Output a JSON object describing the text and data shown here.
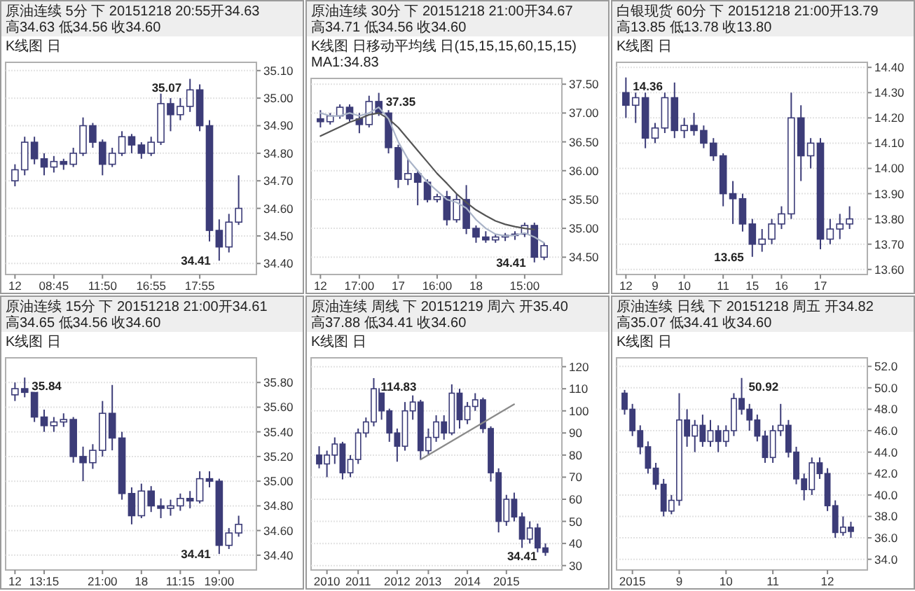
{
  "chart_data": [
    {
      "type": "candlestick",
      "title": "原油连续 5分 下 20151218 20:55开34.63 高34.63 低34.56 收34.60",
      "subtitle": "K线图 日",
      "categories": [
        "12",
        null,
        null,
        null,
        "08:45",
        null,
        null,
        null,
        null,
        "11:50",
        null,
        null,
        null,
        null,
        "16:55",
        null,
        null,
        null,
        null,
        "17:55",
        null,
        null,
        null,
        null
      ],
      "ylim": [
        34.36,
        35.13
      ],
      "yticks": [
        {
          "value": 34.4,
          "label": "34.40"
        },
        {
          "value": 34.5,
          "label": "34.50"
        },
        {
          "value": 34.6,
          "label": "34.60"
        },
        {
          "value": 34.7,
          "label": "34.70"
        },
        {
          "value": 34.8,
          "label": "34.80"
        },
        {
          "value": 34.9,
          "label": "34.90"
        },
        {
          "value": 35,
          "label": "35.00"
        },
        {
          "value": 35.1,
          "label": "35.10"
        }
      ],
      "grid": "y",
      "annotations": [
        "35.07",
        "34.41"
      ],
      "series": [
        {
          "type": "candlestick",
          "color": "#3c3c78",
          "ohlc": [
            [
              34.7,
              34.76,
              34.68,
              34.74
            ],
            [
              34.74,
              34.86,
              34.72,
              34.84
            ],
            [
              34.84,
              34.86,
              34.76,
              34.78
            ],
            [
              34.78,
              34.8,
              34.72,
              34.75
            ],
            [
              34.75,
              34.79,
              34.73,
              34.77
            ],
            [
              34.77,
              34.78,
              34.74,
              34.76
            ],
            [
              34.76,
              34.82,
              34.75,
              34.8
            ],
            [
              34.8,
              34.93,
              34.79,
              34.9
            ],
            [
              34.9,
              34.91,
              34.82,
              34.84
            ],
            [
              34.84,
              34.85,
              34.72,
              34.76
            ],
            [
              34.76,
              34.82,
              34.75,
              34.8
            ],
            [
              34.8,
              34.88,
              34.79,
              34.86
            ],
            [
              34.86,
              34.87,
              34.8,
              34.83
            ],
            [
              34.83,
              34.84,
              34.78,
              34.8
            ],
            [
              34.8,
              34.86,
              34.79,
              34.84
            ],
            [
              34.84,
              35.03,
              34.83,
              34.98
            ],
            [
              34.98,
              35.0,
              34.88,
              34.94
            ],
            [
              34.94,
              35.0,
              34.92,
              34.97
            ],
            [
              34.97,
              35.07,
              34.95,
              35.03
            ],
            [
              35.03,
              35.05,
              34.88,
              34.9
            ],
            [
              34.9,
              34.92,
              34.48,
              34.52
            ],
            [
              34.52,
              34.56,
              34.41,
              34.46
            ],
            [
              34.46,
              34.58,
              34.44,
              34.55
            ],
            [
              34.55,
              34.72,
              34.54,
              34.6
            ]
          ]
        }
      ]
    },
    {
      "type": "candlestick",
      "title": "原油连续 30分 下 20151218 21:00开34.67 高34.71 低34.56 收34.60",
      "subtitle": "K线图 日移动平均线 日(15,15,15,60,15,15) MA1:34.83",
      "categories": [
        "12",
        null,
        null,
        null,
        "17:00",
        null,
        null,
        null,
        "17",
        null,
        null,
        null,
        "16:00",
        null,
        null,
        null,
        "18",
        null,
        null,
        null,
        null,
        "15:00",
        null,
        null
      ],
      "ylim": [
        34.2,
        37.6
      ],
      "yticks": [
        {
          "value": 34.5,
          "label": "34.50"
        },
        {
          "value": 35,
          "label": "35.00"
        },
        {
          "value": 35.5,
          "label": "35.50"
        },
        {
          "value": 36,
          "label": "36.00"
        },
        {
          "value": 36.5,
          "label": "36.50"
        },
        {
          "value": 37,
          "label": "37.00"
        },
        {
          "value": 37.5,
          "label": "37.50"
        }
      ],
      "grid": "y",
      "annotations": [
        "37.35",
        "34.41"
      ],
      "series": [
        {
          "type": "candlestick",
          "color": "#3c3c78",
          "ohlc": [
            [
              36.9,
              37.05,
              36.75,
              36.85
            ],
            [
              36.85,
              37.0,
              36.8,
              36.95
            ],
            [
              36.95,
              37.15,
              36.9,
              37.1
            ],
            [
              37.1,
              37.15,
              36.85,
              36.9
            ],
            [
              36.9,
              37.0,
              36.65,
              36.8
            ],
            [
              36.8,
              37.3,
              36.75,
              37.2
            ],
            [
              37.2,
              37.35,
              36.95,
              37.0
            ],
            [
              37.0,
              37.05,
              36.3,
              36.4
            ],
            [
              36.4,
              36.45,
              35.7,
              35.85
            ],
            [
              35.85,
              36.2,
              35.75,
              35.95
            ],
            [
              35.95,
              36.0,
              35.4,
              35.8
            ],
            [
              35.8,
              35.85,
              35.45,
              35.5
            ],
            [
              35.5,
              35.6,
              35.45,
              35.55
            ],
            [
              35.55,
              35.65,
              35.05,
              35.15
            ],
            [
              35.15,
              35.6,
              35.1,
              35.5
            ],
            [
              35.5,
              35.75,
              34.9,
              35.0
            ],
            [
              35.0,
              35.05,
              34.75,
              34.85
            ],
            [
              34.85,
              34.95,
              34.75,
              34.8
            ],
            [
              34.8,
              34.9,
              34.75,
              34.85
            ],
            [
              34.85,
              34.92,
              34.78,
              34.88
            ],
            [
              34.88,
              34.95,
              34.8,
              34.9
            ],
            [
              34.9,
              35.1,
              34.85,
              35.05
            ],
            [
              35.05,
              35.1,
              34.41,
              34.5
            ],
            [
              34.5,
              34.75,
              34.45,
              34.7
            ]
          ]
        },
        {
          "type": "line",
          "color": "#555555",
          "values": [
            36.6,
            36.68,
            36.76,
            36.84,
            36.9,
            36.97,
            37.0,
            36.9,
            36.75,
            36.55,
            36.35,
            36.15,
            35.95,
            35.78,
            35.6,
            35.45,
            35.32,
            35.22,
            35.13,
            35.07,
            35.03,
            35.0,
            34.98,
            null
          ]
        },
        {
          "type": "line",
          "color": "#aab4c8",
          "values": [
            37.0,
            36.95,
            36.95,
            37.0,
            36.95,
            37.0,
            37.1,
            36.9,
            36.5,
            36.2,
            36.0,
            35.8,
            35.65,
            35.5,
            35.45,
            35.35,
            35.15,
            35.0,
            34.9,
            34.87,
            34.88,
            34.92,
            34.85,
            34.75
          ]
        }
      ]
    },
    {
      "type": "candlestick",
      "title": "白银现货 60分 下 20151218 21:00开13.79 高13.85 低13.78 收13.80",
      "subtitle": "K线图 日",
      "categories": [
        "12",
        null,
        null,
        "9",
        null,
        null,
        "10",
        null,
        null,
        null,
        "11",
        null,
        null,
        "15",
        null,
        null,
        "16",
        null,
        null,
        null,
        "17",
        null,
        null,
        null
      ],
      "ylim": [
        13.58,
        14.42
      ],
      "yticks": [
        {
          "value": 13.6,
          "label": "13.60"
        },
        {
          "value": 13.7,
          "label": "13.70"
        },
        {
          "value": 13.8,
          "label": "13.80"
        },
        {
          "value": 13.9,
          "label": "13.90"
        },
        {
          "value": 14,
          "label": "14.00"
        },
        {
          "value": 14.1,
          "label": "14.10"
        },
        {
          "value": 14.2,
          "label": "14.20"
        },
        {
          "value": 14.3,
          "label": "14.30"
        },
        {
          "value": 14.4,
          "label": "14.40"
        }
      ],
      "grid": "y",
      "annotations": [
        "14.36",
        "13.65"
      ],
      "series": [
        {
          "type": "candlestick",
          "color": "#3c3c78",
          "ohlc": [
            [
              14.3,
              14.36,
              14.2,
              14.25
            ],
            [
              14.25,
              14.3,
              14.18,
              14.28
            ],
            [
              14.28,
              14.3,
              14.08,
              14.12
            ],
            [
              14.12,
              14.18,
              14.1,
              14.16
            ],
            [
              14.16,
              14.3,
              14.14,
              14.28
            ],
            [
              14.28,
              14.34,
              14.12,
              14.15
            ],
            [
              14.15,
              14.2,
              14.12,
              14.17
            ],
            [
              14.17,
              14.22,
              14.13,
              14.15
            ],
            [
              14.15,
              14.17,
              14.08,
              14.1
            ],
            [
              14.1,
              14.12,
              14.03,
              14.05
            ],
            [
              14.05,
              14.06,
              13.85,
              13.9
            ],
            [
              13.9,
              13.95,
              13.78,
              13.88
            ],
            [
              13.88,
              13.9,
              13.75,
              13.78
            ],
            [
              13.78,
              13.8,
              13.65,
              13.7
            ],
            [
              13.7,
              13.76,
              13.67,
              13.72
            ],
            [
              13.72,
              13.8,
              13.7,
              13.78
            ],
            [
              13.78,
              13.85,
              13.76,
              13.82
            ],
            [
              13.82,
              14.3,
              13.8,
              14.2
            ],
            [
              14.2,
              14.25,
              13.95,
              14.05
            ],
            [
              14.05,
              14.12,
              14.0,
              14.1
            ],
            [
              14.1,
              14.12,
              13.68,
              13.72
            ],
            [
              13.72,
              13.8,
              13.7,
              13.76
            ],
            [
              13.76,
              13.82,
              13.72,
              13.78
            ],
            [
              13.78,
              13.85,
              13.76,
              13.8
            ]
          ]
        }
      ]
    },
    {
      "type": "candlestick",
      "title": "原油连续 15分 下 20151218 21:00开34.61 高34.65 低34.56 收34.60",
      "subtitle": "K线图 日",
      "categories": [
        "12",
        null,
        null,
        "13:15",
        null,
        null,
        null,
        null,
        null,
        "21:00",
        null,
        null,
        null,
        "18",
        null,
        null,
        null,
        "11:15",
        null,
        null,
        null,
        "19:00",
        null,
        null
      ],
      "ylim": [
        34.28,
        36.0
      ],
      "yticks": [
        {
          "value": 34.4,
          "label": "34.40"
        },
        {
          "value": 34.6,
          "label": "34.60"
        },
        {
          "value": 34.8,
          "label": "34.80"
        },
        {
          "value": 35,
          "label": "35.00"
        },
        {
          "value": 35.2,
          "label": "35.20"
        },
        {
          "value": 35.4,
          "label": "35.40"
        },
        {
          "value": 35.6,
          "label": "35.60"
        },
        {
          "value": 35.8,
          "label": "35.80"
        }
      ],
      "grid": "y",
      "annotations": [
        "35.84",
        "34.41"
      ],
      "series": [
        {
          "type": "candlestick",
          "color": "#3c3c78",
          "ohlc": [
            [
              35.7,
              35.8,
              35.65,
              35.75
            ],
            [
              35.75,
              35.84,
              35.68,
              35.72
            ],
            [
              35.72,
              35.74,
              35.48,
              35.52
            ],
            [
              35.52,
              35.58,
              35.4,
              35.45
            ],
            [
              35.45,
              35.52,
              35.4,
              35.48
            ],
            [
              35.48,
              35.55,
              35.44,
              35.5
            ],
            [
              35.5,
              35.52,
              35.15,
              35.2
            ],
            [
              35.2,
              35.28,
              35.0,
              35.15
            ],
            [
              35.15,
              35.3,
              35.1,
              35.25
            ],
            [
              35.25,
              35.65,
              35.2,
              35.55
            ],
            [
              35.55,
              35.78,
              35.25,
              35.35
            ],
            [
              35.35,
              35.4,
              34.85,
              34.9
            ],
            [
              34.9,
              34.95,
              34.65,
              34.72
            ],
            [
              34.72,
              34.98,
              34.7,
              34.92
            ],
            [
              34.92,
              34.96,
              34.75,
              34.8
            ],
            [
              34.8,
              34.86,
              34.7,
              34.78
            ],
            [
              34.78,
              34.85,
              34.72,
              34.8
            ],
            [
              34.8,
              34.9,
              34.76,
              34.86
            ],
            [
              34.86,
              34.92,
              34.78,
              34.84
            ],
            [
              34.84,
              35.08,
              34.82,
              35.02
            ],
            [
              35.02,
              35.08,
              34.95,
              35.0
            ],
            [
              35.0,
              35.02,
              34.41,
              34.48
            ],
            [
              34.48,
              34.62,
              34.45,
              34.58
            ],
            [
              34.58,
              34.72,
              34.55,
              34.65
            ]
          ]
        }
      ]
    },
    {
      "type": "candlestick",
      "title": "原油连续 周线 下 20151219 周六 开35.40 高37.88 低34.41 收34.60",
      "subtitle": "K线图 日",
      "categories": [
        null,
        "2010",
        null,
        null,
        null,
        "2011",
        null,
        null,
        null,
        null,
        "2012",
        null,
        null,
        null,
        "2013",
        null,
        null,
        null,
        null,
        "2014",
        null,
        null,
        null,
        null,
        "2015",
        null,
        null,
        null,
        null,
        null
      ],
      "ylim": [
        28,
        124
      ],
      "yticks": [
        30,
        40,
        50,
        60,
        70,
        80,
        90,
        100,
        110,
        120
      ],
      "grid": "y",
      "annotations": [
        "114.83",
        "34.41"
      ],
      "series": [
        {
          "type": "candlestick",
          "color": "#3c3c78",
          "ohlc": [
            [
              80,
              84,
              74,
              76
            ],
            [
              76,
              82,
              70,
              80
            ],
            [
              80,
              88,
              76,
              85
            ],
            [
              85,
              86,
              69,
              72
            ],
            [
              72,
              80,
              70,
              78
            ],
            [
              78,
              92,
              76,
              90
            ],
            [
              90,
              97,
              88,
              95
            ],
            [
              95,
              114.83,
              93,
              110
            ],
            [
              110,
              112,
              96,
              100
            ],
            [
              100,
              101,
              86,
              90
            ],
            [
              90,
              92,
              77,
              84
            ],
            [
              84,
              104,
              82,
              100
            ],
            [
              100,
              107,
              96,
              104
            ],
            [
              104,
              105,
              78,
              82
            ],
            [
              82,
              92,
              80,
              88
            ],
            [
              88,
              98,
              86,
              95
            ],
            [
              95,
              98,
              87,
              90
            ],
            [
              90,
              112,
              89,
              108
            ],
            [
              108,
              110,
              92,
              96
            ],
            [
              96,
              104,
              94,
              102
            ],
            [
              102,
              108,
              100,
              105
            ],
            [
              105,
              106,
              90,
              92
            ],
            [
              92,
              93,
              68,
              72
            ],
            [
              72,
              74,
              45,
              50
            ],
            [
              50,
              62,
              48,
              60
            ],
            [
              60,
              63,
              50,
              52
            ],
            [
              52,
              54,
              38,
              42
            ],
            [
              42,
              50,
              40,
              47
            ],
            [
              47,
              49,
              36,
              38
            ],
            [
              38,
              40,
              34.41,
              36
            ]
          ]
        },
        {
          "type": "line",
          "color": "#8a8a8a",
          "values": [
            null,
            null,
            null,
            null,
            null,
            null,
            null,
            null,
            null,
            null,
            null,
            null,
            null,
            78,
            null,
            null,
            null,
            null,
            null,
            null,
            null,
            null,
            null,
            null,
            null,
            103,
            null,
            null,
            null,
            null
          ]
        }
      ]
    },
    {
      "type": "candlestick",
      "title": "原油连续 日线 下 20151218 周五 开34.82 高35.07 低34.41 收34.60",
      "subtitle": "K线图 日",
      "categories": [
        null,
        "2015",
        null,
        null,
        null,
        null,
        null,
        "9",
        null,
        null,
        null,
        null,
        null,
        "10",
        null,
        null,
        null,
        null,
        null,
        "11",
        null,
        null,
        null,
        null,
        null,
        null,
        "12",
        null,
        null,
        null
      ],
      "ylim": [
        33,
        52.8
      ],
      "yticks": [
        {
          "value": 34,
          "label": "34.0"
        },
        {
          "value": 36,
          "label": "36.0"
        },
        {
          "value": 38,
          "label": "38.0"
        },
        {
          "value": 40,
          "label": "40.0"
        },
        {
          "value": 42,
          "label": "42.0"
        },
        {
          "value": 44,
          "label": "44.0"
        },
        {
          "value": 46,
          "label": "46.0"
        },
        {
          "value": 48,
          "label": "48.0"
        },
        {
          "value": 50,
          "label": "50.0"
        },
        {
          "value": 52,
          "label": "52.0"
        }
      ],
      "grid": "y",
      "annotations": [
        "50.92"
      ],
      "series": [
        {
          "type": "candlestick",
          "color": "#3c3c78",
          "ohlc": [
            [
              49.5,
              49.8,
              47.5,
              48.0
            ],
            [
              48.0,
              48.5,
              45.5,
              46.0
            ],
            [
              46.0,
              46.5,
              43.8,
              44.5
            ],
            [
              44.5,
              45.0,
              42.0,
              42.5
            ],
            [
              42.5,
              43.0,
              40.5,
              41.0
            ],
            [
              41.0,
              41.5,
              38.0,
              38.5
            ],
            [
              38.5,
              40.0,
              38.2,
              39.5
            ],
            [
              39.5,
              49.5,
              39.0,
              47.0
            ],
            [
              47.0,
              48.0,
              44.5,
              45.5
            ],
            [
              45.5,
              47.0,
              44.0,
              46.5
            ],
            [
              46.5,
              47.5,
              44.5,
              45.0
            ],
            [
              45.0,
              47.0,
              44.5,
              46.0
            ],
            [
              46.0,
              46.5,
              44.0,
              45.0
            ],
            [
              45.0,
              46.5,
              44.5,
              46.0
            ],
            [
              46.0,
              49.5,
              45.5,
              49.0
            ],
            [
              49.0,
              50.92,
              47.5,
              48.0
            ],
            [
              48.0,
              48.5,
              46.0,
              47.0
            ],
            [
              47.0,
              47.5,
              45.0,
              45.5
            ],
            [
              45.5,
              46.0,
              43.0,
              43.5
            ],
            [
              43.5,
              46.5,
              43.0,
              46.0
            ],
            [
              46.0,
              48.5,
              45.5,
              46.5
            ],
            [
              46.5,
              47.0,
              43.5,
              44.0
            ],
            [
              44.0,
              44.5,
              41.0,
              41.5
            ],
            [
              41.5,
              42.0,
              39.5,
              40.5
            ],
            [
              40.5,
              43.5,
              40.0,
              43.0
            ],
            [
              43.0,
              43.5,
              41.5,
              42.0
            ],
            [
              42.0,
              42.5,
              38.5,
              39.0
            ],
            [
              39.0,
              39.5,
              36.0,
              36.5
            ],
            [
              36.5,
              38.0,
              36.2,
              37.0
            ],
            [
              37.0,
              37.5,
              36.0,
              36.6
            ]
          ]
        }
      ]
    }
  ]
}
